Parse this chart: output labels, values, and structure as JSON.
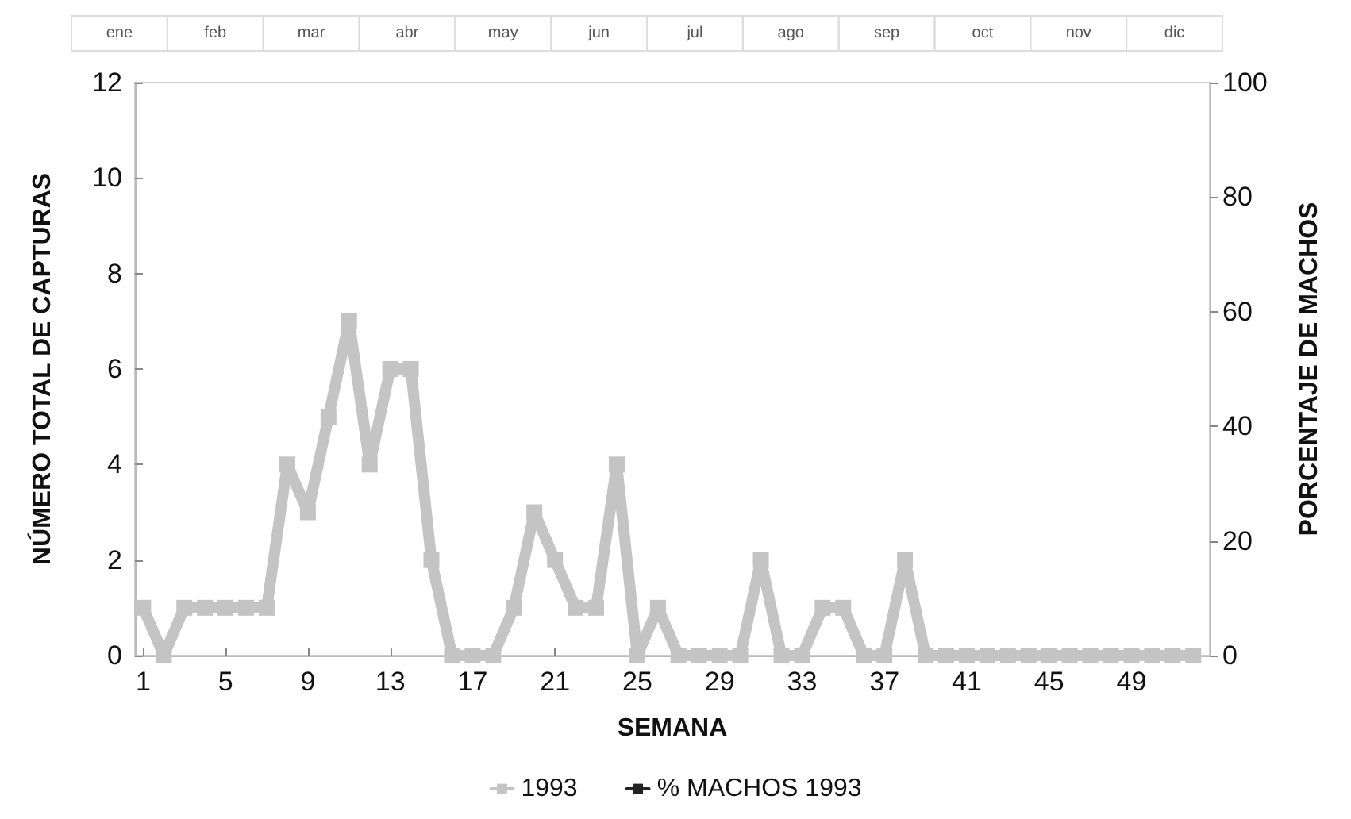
{
  "chart_data": {
    "type": "line",
    "xlabel": "SEMANA",
    "ylabel": "NÚMERO TOTAL DE CAPTURAS",
    "y2label": "PORCENTAJE DE MACHOS",
    "annotations": [
      "ene",
      "feb",
      "mar",
      "abr",
      "may",
      "jun",
      "jul",
      "ago",
      "sep",
      "oct",
      "nov",
      "dic"
    ],
    "x": [
      1,
      2,
      3,
      4,
      5,
      6,
      7,
      8,
      9,
      10,
      11,
      12,
      13,
      14,
      15,
      16,
      17,
      18,
      19,
      20,
      21,
      22,
      23,
      24,
      25,
      26,
      27,
      28,
      29,
      30,
      31,
      32,
      33,
      34,
      35,
      36,
      37,
      38,
      39,
      40,
      41,
      42,
      43,
      44,
      45,
      46,
      47,
      48,
      49,
      50,
      51,
      52
    ],
    "series": [
      {
        "name": "1993",
        "color": "#c4c4c4",
        "values": [
          1,
          0,
          1,
          1,
          1,
          1,
          1,
          4,
          3,
          5,
          7,
          4,
          6,
          6,
          2,
          0,
          0,
          0,
          1,
          3,
          2,
          1,
          1,
          4,
          0,
          1,
          0,
          0,
          0,
          0,
          2,
          0,
          0,
          1,
          1,
          0,
          0,
          2,
          0,
          0,
          0,
          0,
          0,
          0,
          0,
          0,
          0,
          0,
          0,
          0,
          0,
          0
        ]
      },
      {
        "name": "% MACHOS 1993",
        "color": "#222222",
        "values": [
          null,
          null,
          null,
          null,
          null,
          null,
          null,
          null,
          null,
          null,
          null,
          null,
          null,
          null,
          null,
          null,
          null,
          null,
          null,
          null,
          null,
          null,
          null,
          null,
          null,
          null,
          null,
          null,
          null,
          null,
          null,
          null,
          null,
          null,
          null,
          null,
          null,
          null,
          null,
          null,
          null,
          null,
          null,
          null,
          null,
          null,
          null,
          null,
          null,
          null,
          null,
          null
        ]
      }
    ],
    "xlim": [
      0.6,
      52.8
    ],
    "xticks": [
      1,
      5,
      9,
      13,
      17,
      21,
      25,
      29,
      33,
      37,
      41,
      45,
      49
    ],
    "ylim": [
      0,
      12
    ],
    "yticks": [
      0,
      2,
      4,
      6,
      8,
      10,
      12
    ],
    "y2lim": [
      0,
      100
    ],
    "y2ticks": [
      0,
      20,
      40,
      60,
      80,
      100
    ],
    "marker": "square",
    "line_style": "solid",
    "grid": false,
    "legend": "bottom"
  }
}
